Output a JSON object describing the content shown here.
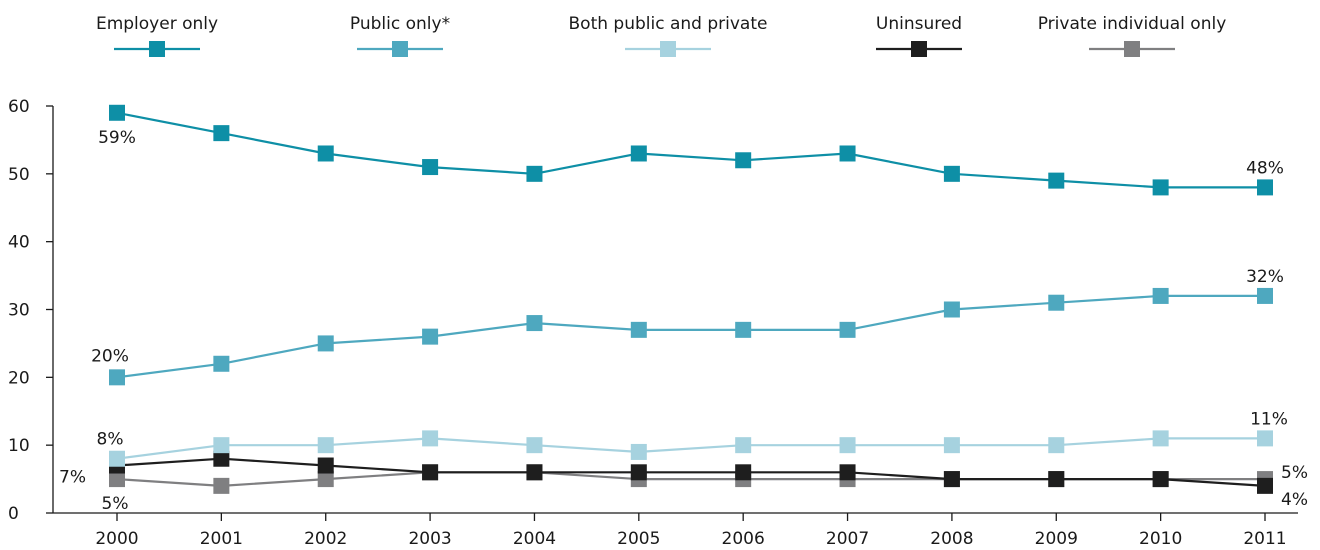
{
  "chart_data": {
    "type": "line",
    "title": "",
    "xlabel": "",
    "ylabel": "",
    "ylim": [
      0,
      60
    ],
    "yticks": [
      "0",
      "10",
      "20",
      "30",
      "40",
      "50",
      "60"
    ],
    "categories": [
      "2000",
      "2001",
      "2002",
      "2003",
      "2004",
      "2005",
      "2006",
      "2007",
      "2008",
      "2009",
      "2010",
      "2011"
    ],
    "legend_position": "top",
    "grid": false,
    "series": [
      {
        "name": "Employer only",
        "color": "#0e8fa6",
        "values": [
          59,
          56,
          53,
          51,
          50,
          53,
          52,
          53,
          50,
          49,
          48,
          48
        ]
      },
      {
        "name": "Public only*",
        "color": "#4ea8bf",
        "values": [
          20,
          22,
          25,
          26,
          28,
          27,
          27,
          27,
          30,
          31,
          32,
          32
        ]
      },
      {
        "name": "Both public and private",
        "color": "#a6d2df",
        "values": [
          8,
          10,
          10,
          11,
          10,
          9,
          10,
          10,
          10,
          10,
          11,
          11
        ]
      },
      {
        "name": "Uninsured",
        "color": "#1e1e1e",
        "values": [
          7,
          8,
          7,
          6,
          6,
          6,
          6,
          6,
          5,
          5,
          5,
          4
        ]
      },
      {
        "name": "Private individual only",
        "color": "#7f7f81",
        "values": [
          5,
          4,
          5,
          6,
          6,
          5,
          5,
          5,
          5,
          5,
          5,
          5
        ]
      }
    ],
    "annotations": [
      {
        "series": 0,
        "index": 0,
        "text": "59%"
      },
      {
        "series": 0,
        "index": 11,
        "text": "48%"
      },
      {
        "series": 1,
        "index": 0,
        "text": "20%"
      },
      {
        "series": 1,
        "index": 11,
        "text": "32%"
      },
      {
        "series": 2,
        "index": 0,
        "text": "8%"
      },
      {
        "series": 2,
        "index": 11,
        "text": "11%"
      },
      {
        "series": 3,
        "index": 0,
        "text": "7%"
      },
      {
        "series": 3,
        "index": 11,
        "text": "4%"
      },
      {
        "series": 4,
        "index": 0,
        "text": "5%"
      },
      {
        "series": 4,
        "index": 11,
        "text": "5%"
      }
    ]
  }
}
